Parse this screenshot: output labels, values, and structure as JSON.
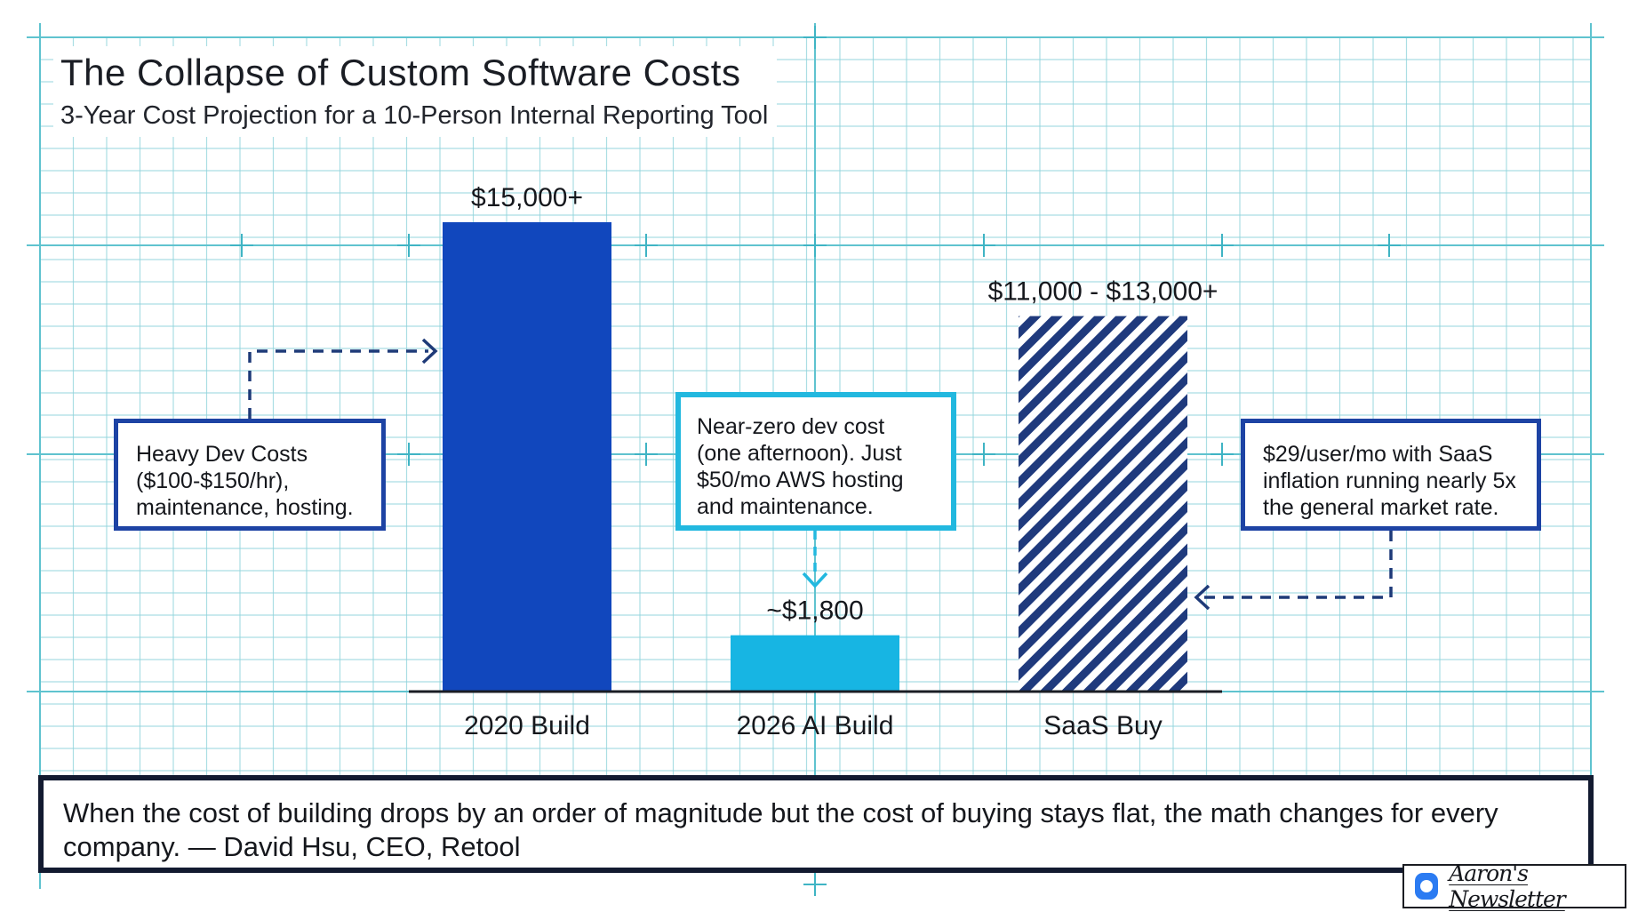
{
  "title": "The Collapse of Custom Software Costs",
  "subtitle": "3-Year Cost Projection for a 10-Person Internal Reporting Tool",
  "colors": {
    "dark_blue": "#1147bd",
    "cyan": "#17b5e3",
    "navy_stripe": "#1f3a7d",
    "grid": "#8fd3dc",
    "callout_border": "#1d43a4",
    "callout_cyan_border": "#22b8df"
  },
  "chart_data": {
    "type": "bar",
    "title": "The Collapse of Custom Software Costs",
    "subtitle": "3-Year Cost Projection for a 10-Person Internal Reporting Tool",
    "categories": [
      "2020 Build",
      "2026 AI Build",
      "SaaS Buy"
    ],
    "values": [
      15000,
      1800,
      12000
    ],
    "value_labels": [
      "$15,000+",
      "~$1,800",
      "$11,000 - $13,000+"
    ],
    "bar_styles": [
      "solid-dark-blue",
      "solid-cyan",
      "striped-navy"
    ],
    "ylim": [
      0,
      16500
    ],
    "xlabel": "",
    "ylabel": "",
    "grid": true
  },
  "callouts": {
    "left": "Heavy Dev Costs ($100-$150/hr), maintenance, hosting.",
    "middle": "Near-zero dev cost (one afternoon). Just $50/mo AWS hosting and maintenance.",
    "right": "$29/user/mo with SaaS inflation running nearly 5x the general market rate."
  },
  "quote": "When the cost of building drops by an order of magnitude but the cost of buying stays flat, the math changes for every company. — David Hsu, CEO, Retool",
  "badge": {
    "icon": "chat-bubble-icon",
    "label": "Aaron's Newsletter"
  }
}
